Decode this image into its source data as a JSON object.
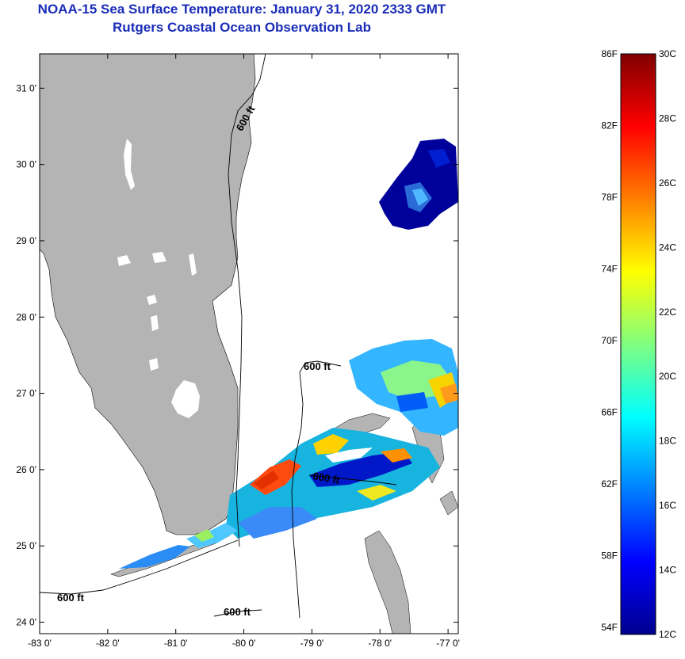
{
  "title": {
    "line1": "NOAA-15 Sea Surface Temperature:  January 31, 2020 2333 GMT",
    "line2": "Rutgers Coastal Ocean Observation Lab"
  },
  "map": {
    "lon_range": [
      -83.0,
      -76.85
    ],
    "lat_range": [
      23.85,
      31.45
    ],
    "lon_ticks": [
      -83,
      -82,
      -81,
      -80,
      -79,
      -78,
      -77
    ],
    "lon_tick_labels": [
      "-83 0'",
      "-82 0'",
      "-81 0'",
      "-80 0'",
      "-79 0'",
      "-78 0'",
      "-77 0'"
    ],
    "lat_ticks": [
      24,
      25,
      26,
      27,
      28,
      29,
      30,
      31
    ],
    "lat_tick_labels": [
      "24 0'",
      "25 0'",
      "26 0'",
      "27 0'",
      "28 0'",
      "29 0'",
      "30 0'",
      "31 0'"
    ],
    "contour_labels": [
      "600 ft",
      "600 ft",
      "600 ft",
      "600 ft"
    ],
    "land_color": "#b4b4b4",
    "water_color": "#ffffff"
  },
  "colorbar": {
    "fahrenheit_labels": [
      "86F",
      "82F",
      "78F",
      "74F",
      "70F",
      "66F",
      "62F",
      "58F",
      "54F"
    ],
    "celsius_labels": [
      "30C",
      "28C",
      "26C",
      "24C",
      "22C",
      "20C",
      "18C",
      "16C",
      "14C",
      "12C"
    ],
    "celsius_range": [
      12,
      30
    ],
    "colormap": "jet"
  }
}
